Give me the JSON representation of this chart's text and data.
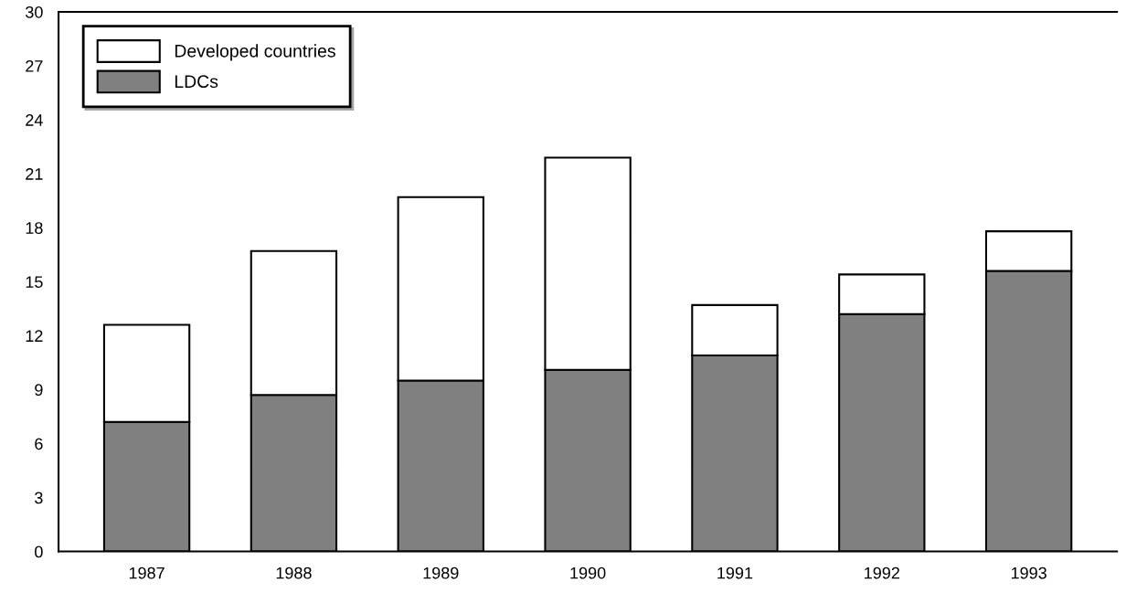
{
  "chart_data": {
    "type": "bar",
    "stacked": true,
    "categories": [
      "1987",
      "1988",
      "1989",
      "1990",
      "1991",
      "1992",
      "1993"
    ],
    "series": [
      {
        "name": "LDCs",
        "color": "#808080",
        "values": [
          7.2,
          8.7,
          9.5,
          10.1,
          10.9,
          13.2,
          15.6
        ]
      },
      {
        "name": "Developed countries",
        "color": "#ffffff",
        "values": [
          5.4,
          8.0,
          10.2,
          11.8,
          2.8,
          2.2,
          2.2
        ]
      }
    ],
    "ylim": [
      0,
      30
    ],
    "yticks": [
      0,
      3,
      6,
      9,
      12,
      15,
      18,
      21,
      24,
      27,
      30
    ],
    "grid": false,
    "legend": "top left"
  }
}
